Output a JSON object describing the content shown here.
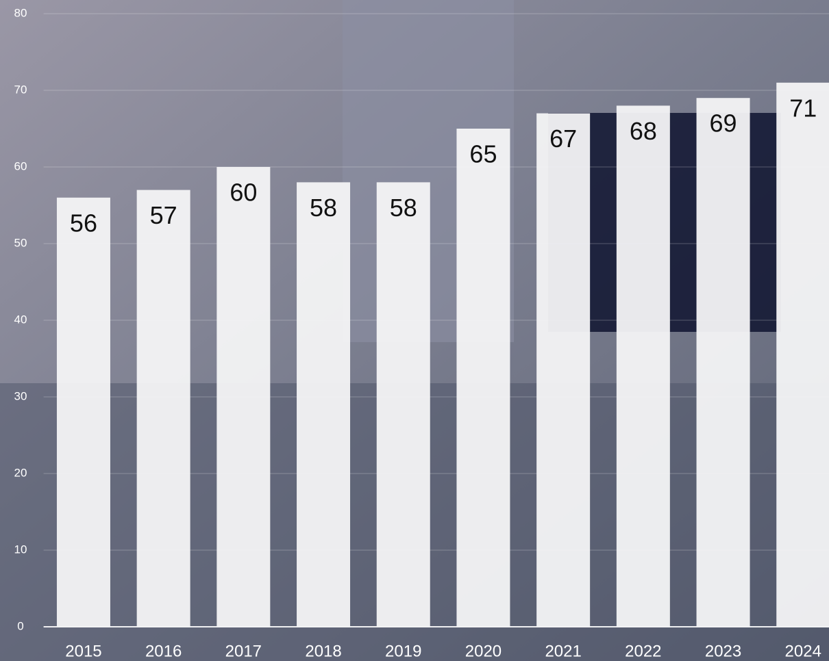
{
  "chart_data": {
    "type": "bar",
    "categories": [
      "2015",
      "2016",
      "2017",
      "2018",
      "2019",
      "2020",
      "2021",
      "2022",
      "2023",
      "2024"
    ],
    "values": [
      56,
      57,
      60,
      58,
      58,
      65,
      67,
      68,
      69,
      71
    ],
    "color": "#f4f4f6",
    "ylim": [
      0,
      80
    ],
    "yticks": [
      0,
      10,
      20,
      30,
      40,
      50,
      60,
      70,
      80
    ],
    "grid": true
  }
}
